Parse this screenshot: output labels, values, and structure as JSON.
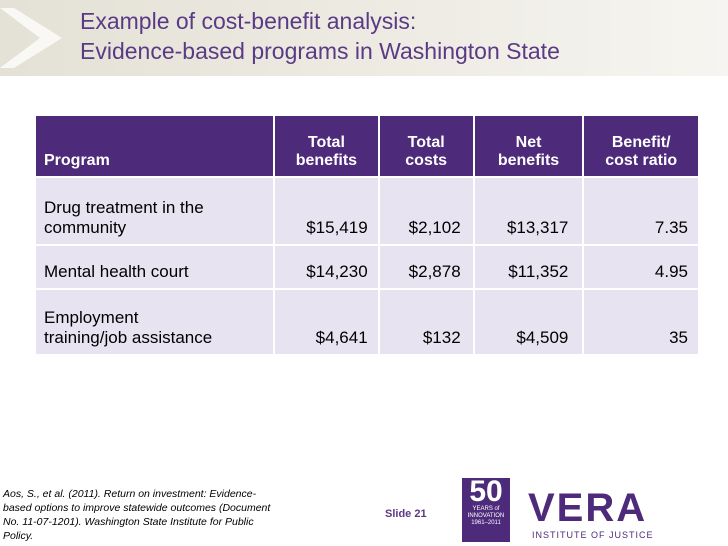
{
  "header": {
    "title": [
      "Example of cost-benefit analysis:",
      "Evidence-based programs in Washington State"
    ]
  },
  "table": {
    "columns": [
      [
        "Program"
      ],
      [
        "Total",
        "benefits"
      ],
      [
        "Total",
        "costs"
      ],
      [
        "Net",
        "benefits"
      ],
      [
        "Benefit/",
        "cost ratio"
      ]
    ],
    "rows": [
      {
        "program": [
          "Drug treatment in the",
          "community"
        ],
        "values": [
          "$15,419",
          "$2,102",
          "$13,317",
          "7.35"
        ]
      },
      {
        "program": [
          "Mental health court"
        ],
        "values": [
          "$14,230",
          "$2,878",
          "$11,352",
          "4.95"
        ]
      },
      {
        "program": [
          "Employment",
          "training/job assistance"
        ],
        "values": [
          "$4,641",
          "$132",
          "$4,509",
          "35"
        ]
      }
    ]
  },
  "footer": {
    "citation": "Aos, S., et al. (2011). Return on investment: Evidence-based options to improve statewide outcomes (Document No. 11-07-1201). Washington State Institute for Public Policy.",
    "slide": "Slide 21",
    "anniversary": {
      "number": "50",
      "text": [
        "YEARS of",
        "INNOVATION",
        "1961–2011"
      ]
    },
    "logo": {
      "name": "VERA",
      "tagline": "INSTITUTE OF JUSTICE"
    }
  }
}
